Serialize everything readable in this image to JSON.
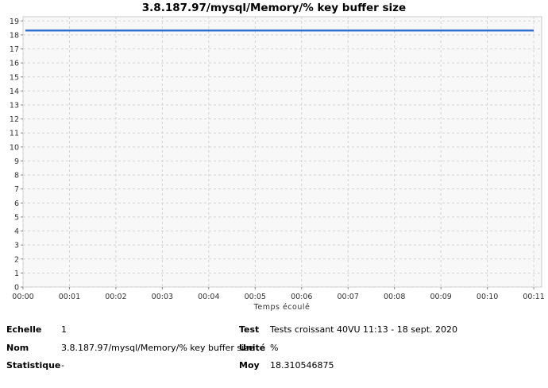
{
  "chart_data": {
    "type": "line",
    "title": "3.8.187.97/mysql/Memory/% key buffer size",
    "xlabel": "Temps écoulé",
    "ylabel": "",
    "x_ticks": [
      "00:00",
      "00:01",
      "00:02",
      "00:03",
      "00:04",
      "00:05",
      "00:06",
      "00:07",
      "00:08",
      "00:09",
      "00:10",
      "00:11"
    ],
    "y_ticks": [
      "0",
      "1",
      "2",
      "3",
      "4",
      "5",
      "6",
      "7",
      "8",
      "9",
      "10",
      "11",
      "12",
      "13",
      "14",
      "15",
      "16",
      "17",
      "18",
      "19"
    ],
    "xlim": [
      0,
      11.17
    ],
    "ylim": [
      0,
      19.3
    ],
    "grid": true,
    "series": [
      {
        "color": "#2a6bd1",
        "x": [
          0.05,
          11.0
        ],
        "y": [
          18.310546875,
          18.310546875
        ]
      }
    ]
  },
  "info": {
    "echelle_label": "Echelle",
    "echelle_value": "1",
    "nom_label": "Nom",
    "nom_value": "3.8.187.97/mysql/Memory/% key buffer size",
    "statistique_label": "Statistique",
    "statistique_value": "-",
    "test_label": "Test",
    "test_value": "Tests croissant 40VU 11:13 - 18 sept. 2020",
    "unite_label": "Unité",
    "unite_value": "%",
    "moy_label": "Moy",
    "moy_value": "18.310546875"
  }
}
